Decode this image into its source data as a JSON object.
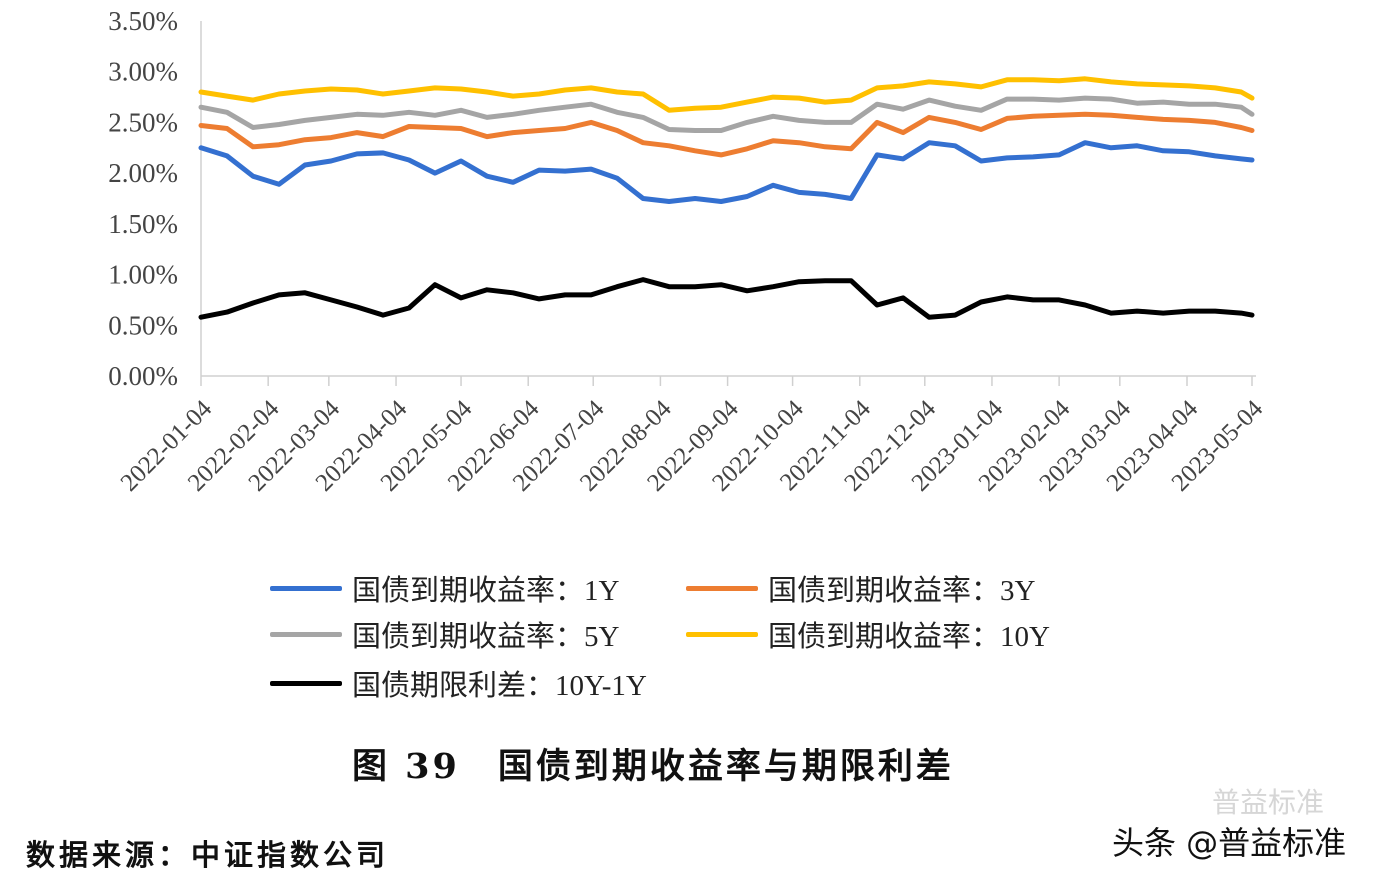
{
  "chart_data": {
    "type": "line",
    "title": "",
    "xlabel": "",
    "ylabel": "",
    "ylim": [
      0,
      3.5
    ],
    "y_ticks": [
      "0.00%",
      "0.50%",
      "1.00%",
      "1.50%",
      "2.00%",
      "2.50%",
      "3.00%",
      "3.50%"
    ],
    "x_ticks": [
      "2022-01-04",
      "2022-02-04",
      "2022-03-04",
      "2022-04-04",
      "2022-05-04",
      "2022-06-04",
      "2022-07-04",
      "2022-08-04",
      "2022-09-04",
      "2022-10-04",
      "2022-11-04",
      "2022-12-04",
      "2023-01-04",
      "2023-02-04",
      "2023-03-04",
      "2023-04-04",
      "2023-05-04"
    ],
    "grid": false,
    "legend_placement": "bottom",
    "x": [
      "2022-01-04",
      "2022-01-16",
      "2022-01-28",
      "2022-02-09",
      "2022-02-21",
      "2022-03-05",
      "2022-03-17",
      "2022-03-29",
      "2022-04-10",
      "2022-04-22",
      "2022-05-04",
      "2022-05-16",
      "2022-05-28",
      "2022-06-09",
      "2022-06-21",
      "2022-07-03",
      "2022-07-15",
      "2022-07-27",
      "2022-08-08",
      "2022-08-20",
      "2022-09-01",
      "2022-09-13",
      "2022-09-25",
      "2022-10-07",
      "2022-10-19",
      "2022-10-31",
      "2022-11-12",
      "2022-11-24",
      "2022-12-06",
      "2022-12-18",
      "2022-12-30",
      "2023-01-11",
      "2023-01-23",
      "2023-02-04",
      "2023-02-16",
      "2023-02-28",
      "2023-03-12",
      "2023-03-24",
      "2023-04-05",
      "2023-04-17",
      "2023-04-29",
      "2023-05-04"
    ],
    "series": [
      {
        "name": "国债到期收益率：1Y",
        "color": "#3470d0",
        "values": [
          2.25,
          2.17,
          1.97,
          1.89,
          2.08,
          2.12,
          2.19,
          2.2,
          2.13,
          2.0,
          2.12,
          1.97,
          1.91,
          2.03,
          2.02,
          2.04,
          1.95,
          1.75,
          1.72,
          1.75,
          1.72,
          1.77,
          1.88,
          1.81,
          1.79,
          1.75,
          2.18,
          2.14,
          2.3,
          2.27,
          2.12,
          2.15,
          2.16,
          2.18,
          2.3,
          2.25,
          2.27,
          2.22,
          2.21,
          2.17,
          2.14,
          2.13
        ]
      },
      {
        "name": "国债到期收益率：3Y",
        "color": "#ed7d31",
        "values": [
          2.47,
          2.44,
          2.26,
          2.28,
          2.33,
          2.35,
          2.4,
          2.36,
          2.46,
          2.45,
          2.44,
          2.36,
          2.4,
          2.42,
          2.44,
          2.5,
          2.42,
          2.3,
          2.27,
          2.22,
          2.18,
          2.24,
          2.32,
          2.3,
          2.26,
          2.24,
          2.5,
          2.4,
          2.55,
          2.5,
          2.43,
          2.54,
          2.56,
          2.57,
          2.58,
          2.57,
          2.55,
          2.53,
          2.52,
          2.5,
          2.45,
          2.42
        ]
      },
      {
        "name": "国债到期收益率：5Y",
        "color": "#a5a5a5",
        "values": [
          2.65,
          2.6,
          2.45,
          2.48,
          2.52,
          2.55,
          2.58,
          2.57,
          2.6,
          2.57,
          2.62,
          2.55,
          2.58,
          2.62,
          2.65,
          2.68,
          2.6,
          2.55,
          2.43,
          2.42,
          2.42,
          2.5,
          2.56,
          2.52,
          2.5,
          2.5,
          2.68,
          2.63,
          2.72,
          2.66,
          2.62,
          2.73,
          2.73,
          2.72,
          2.74,
          2.73,
          2.69,
          2.7,
          2.68,
          2.68,
          2.65,
          2.58
        ]
      },
      {
        "name": "国债到期收益率：10Y",
        "color": "#ffc000",
        "values": [
          2.8,
          2.76,
          2.72,
          2.78,
          2.81,
          2.83,
          2.82,
          2.78,
          2.81,
          2.84,
          2.83,
          2.8,
          2.76,
          2.78,
          2.82,
          2.84,
          2.8,
          2.78,
          2.62,
          2.64,
          2.65,
          2.7,
          2.75,
          2.74,
          2.7,
          2.72,
          2.84,
          2.86,
          2.9,
          2.88,
          2.85,
          2.92,
          2.92,
          2.91,
          2.93,
          2.9,
          2.88,
          2.87,
          2.86,
          2.84,
          2.8,
          2.74
        ]
      },
      {
        "name": "国债期限利差：10Y-1Y",
        "color": "#000000",
        "values": [
          0.58,
          0.63,
          0.72,
          0.8,
          0.82,
          0.75,
          0.68,
          0.6,
          0.67,
          0.9,
          0.77,
          0.85,
          0.82,
          0.76,
          0.8,
          0.8,
          0.88,
          0.95,
          0.88,
          0.88,
          0.9,
          0.84,
          0.88,
          0.93,
          0.94,
          0.94,
          0.7,
          0.77,
          0.58,
          0.6,
          0.73,
          0.78,
          0.75,
          0.75,
          0.7,
          0.62,
          0.64,
          0.62,
          0.64,
          0.64,
          0.62,
          0.6
        ]
      }
    ]
  },
  "caption": "图 39　国债到期收益率与期限利差",
  "source": "数据来源：中证指数公司",
  "watermark": "头条 @普益标准",
  "watermark_faint": "普益标准"
}
